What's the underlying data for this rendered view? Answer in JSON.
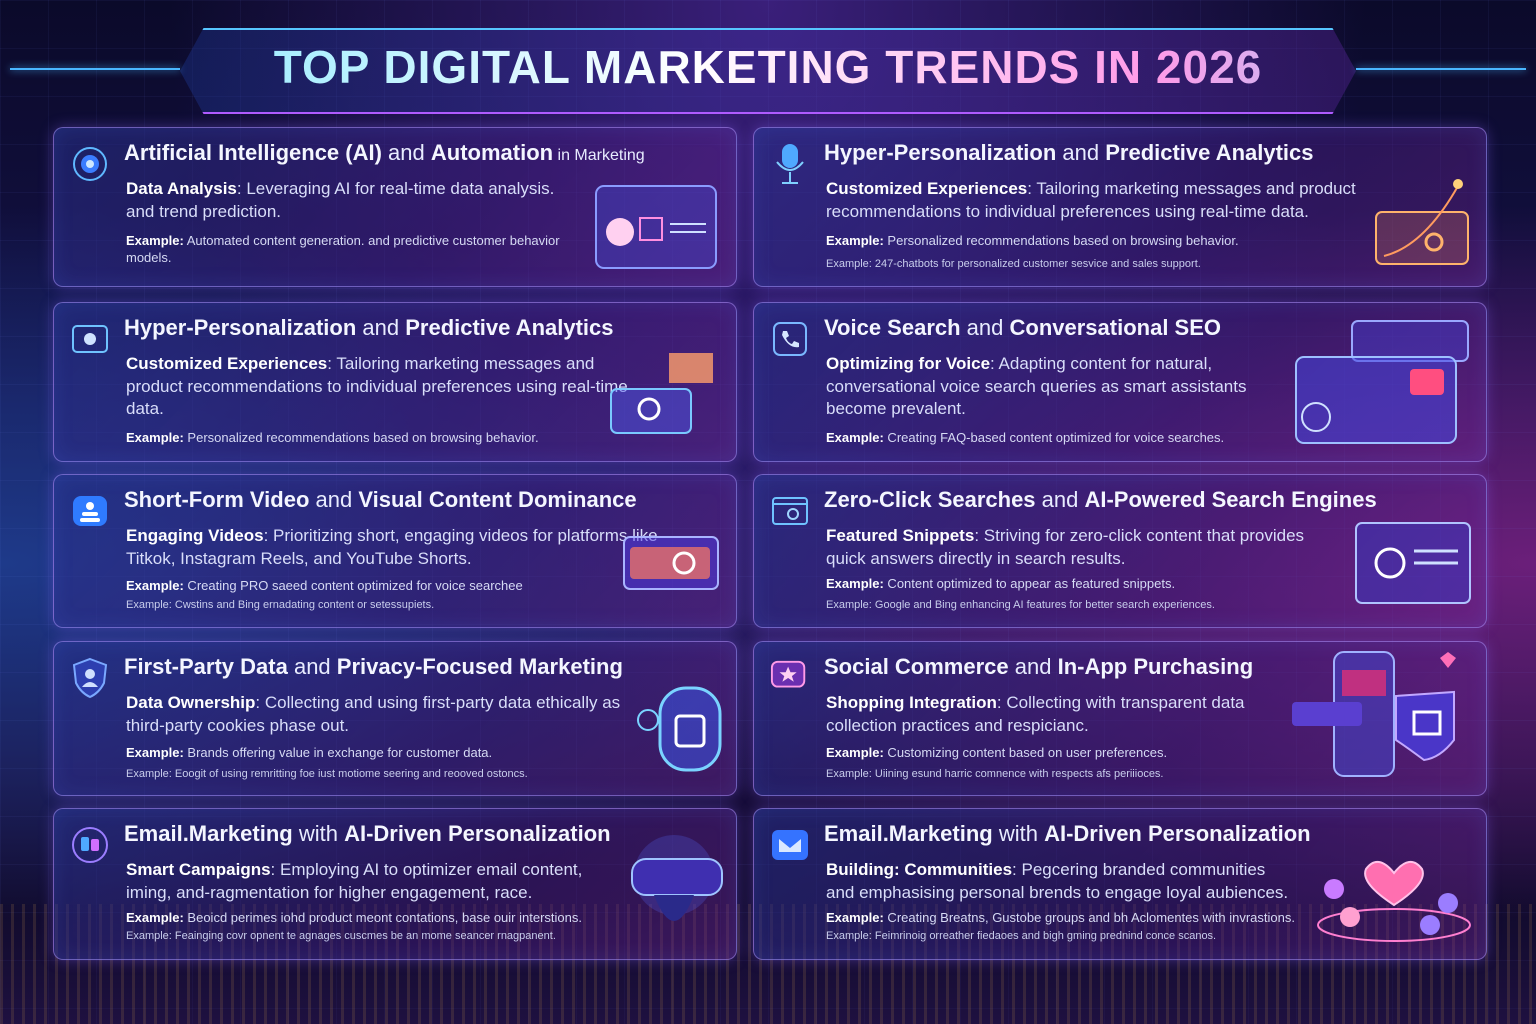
{
  "title": "TOP DIGITAL MARKETING TRENDS IN 2026",
  "cards": [
    {
      "title_a": "Artificial Intelligence (AI)",
      "title_b": " and ",
      "title_c": "Automation",
      "title_d": " in Marketing",
      "lead_label": "Data Analysis",
      "lead_text": ": Leveraging AI for real-time data analysis. and trend prediction.",
      "ex_label": "Example:",
      "ex_text": " Automated content generation. and predictive customer behavior models.",
      "ex2": "",
      "icon": "ai-orb-icon"
    },
    {
      "title_a": "Hyper-Personalization",
      "title_b": " and ",
      "title_c": "Predictive Analytics",
      "title_d": "",
      "lead_label": "Customized Experiences",
      "lead_text": ": Tailoring marketing messages and product recommendations to individual preferences using real-time data.",
      "ex_label": "Example:",
      "ex_text": " Personalized recommendations based on browsing behavior.",
      "ex2": "Example: 247-chatbots for personalized customer sesvice and sales support.",
      "icon": "microphone-icon"
    },
    {
      "title_a": "Hyper-Personalization",
      "title_b": " and ",
      "title_c": "Predictive Analytics",
      "title_d": "",
      "lead_label": "Customized Experiences",
      "lead_text": ": Tailoring marketing messages and product recommendations to individual preferences using real-time data.",
      "ex_label": "Example:",
      "ex_text": " Personalized recommendations based on browsing behavior.",
      "ex2": "",
      "icon": "screen-icon"
    },
    {
      "title_a": "Voice Search",
      "title_b": " and ",
      "title_c": "Conversational SEO",
      "title_d": "",
      "lead_label": "Optimizing for Voice",
      "lead_text": ": Adapting content for natural, conversational voice search queries as smart assistants become prevalent.",
      "ex_label": "Example:",
      "ex_text": " Creating FAQ-based content optimized for voice searches.",
      "ex2": "",
      "icon": "phone-icon"
    },
    {
      "title_a": "Short-Form Video",
      "title_b": " and ",
      "title_c": "Visual Content Dominance",
      "title_d": "",
      "lead_label": "Engaging Videos",
      "lead_text": ": Prioritizing short, engaging videos for platforms like Titkok, Instagram Reels, and YouTube Shorts.",
      "ex_label": "Example:",
      "ex_text": " Creating PRO saeed content optimized for voice searchee",
      "ex2": "Example: Cwstins and Bing ernadating content or setessupiets.",
      "icon": "video-icon"
    },
    {
      "title_a": "Zero-Click Searches",
      "title_b": " and ",
      "title_c": "AI-Powered Search Engines",
      "title_d": "",
      "lead_label": "Featured Snippets",
      "lead_text": ": Striving for zero-click content that provides quick answers directly in search results.",
      "ex_label": "Example:",
      "ex_text": " Content optimized to appear as featured snippets.",
      "ex2": "Example: Google and Bing enhancing AI features for better search experiences.",
      "icon": "browser-icon"
    },
    {
      "title_a": "First-Party Data",
      "title_b": " and ",
      "title_c": "Privacy-Focused Marketing",
      "title_d": "",
      "lead_label": "Data Ownership",
      "lead_text": ": Collecting and using first-party data ethically as third-party cookies phase out.",
      "ex_label": "Example:",
      "ex_text": " Brands offering value in exchange for customer data.",
      "ex2": "Example: Eoogit of using remritting foe iust motiome seering and reooved ostoncs.",
      "icon": "shield-user-icon"
    },
    {
      "title_a": "Social Commerce",
      "title_b": " and ",
      "title_c": "In-App Purchasing",
      "title_d": "",
      "lead_label": "Shopping Integration",
      "lead_text": ": Collecting with transparent data collection practices and respicianc.",
      "ex_label": "Example:",
      "ex_text": " Customizing content based on user preferences.",
      "ex2": "Example: Uiining esund harric comnence with respects afs periiioces.",
      "icon": "chat-star-icon"
    },
    {
      "title_a": "Email.Marketing",
      "title_b": " with ",
      "title_c": "AI-Driven Personalization",
      "title_d": "",
      "lead_label": "Smart Campaigns",
      "lead_text": ": Employing AI to optimizer email content, iming, and-ragmentation for higher engagement, race.",
      "ex_label": "Example:",
      "ex_text": " Beoicd perimes iohd product meont contations, base ouir interstions.",
      "ex2": "Example: Feainging covr opnent te agnages cuscmes be an mome seancer rnagpanent.",
      "icon": "people-icon"
    },
    {
      "title_a": "Email.Marketing",
      "title_b": " with ",
      "title_c": "AI-Driven Personalization",
      "title_d": "",
      "lead_label": "Building: Communities",
      "lead_text": ": Pegcering branded communities and emphasising personal brends to engage loyal aubiences.",
      "ex_label": "Example:",
      "ex_text": " Creating Breatns, Gustobe groups and bh Aclomentes with invrastions.",
      "ex2": "Example: Feimrinoig orreather fiedaoes and bigh gming prednind conce scanos.",
      "icon": "mail-icon"
    }
  ],
  "colors": {
    "accent_cyan": "#6fe3ff",
    "accent_pink": "#ff9be8",
    "card_border": "#aa96ff"
  }
}
